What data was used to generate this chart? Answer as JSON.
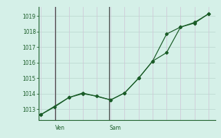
{
  "ylabel_ticks": [
    1013,
    1014,
    1015,
    1016,
    1017,
    1018,
    1019
  ],
  "ylim": [
    1012.3,
    1019.6
  ],
  "bg_color": "#d5f0e8",
  "grid_h_color": "#c0ddd4",
  "grid_v_color": "#d0c8d8",
  "line_color": "#1a5c28",
  "vline_color": "#444444",
  "tick_color": "#1a5c28",
  "series1_x": [
    0,
    1,
    2,
    3,
    4,
    5,
    6,
    7,
    8,
    9,
    10,
    11,
    12
  ],
  "series1_y": [
    1012.65,
    1013.15,
    1013.75,
    1014.0,
    1013.85,
    1013.6,
    1014.05,
    1015.0,
    1016.1,
    1017.85,
    1018.3,
    1018.55,
    1019.15
  ],
  "series2_x": [
    0,
    2,
    3,
    5,
    6,
    7,
    8,
    9,
    10,
    11,
    12
  ],
  "series2_y": [
    1012.65,
    1013.75,
    1014.05,
    1013.6,
    1014.05,
    1015.0,
    1016.1,
    1016.65,
    1018.3,
    1018.6,
    1019.15
  ],
  "ven_x": 1.05,
  "sam_x": 4.9,
  "total_points": 13,
  "xlim": [
    -0.15,
    12.5
  ],
  "figsize": [
    3.2,
    2.0
  ],
  "dpi": 100
}
